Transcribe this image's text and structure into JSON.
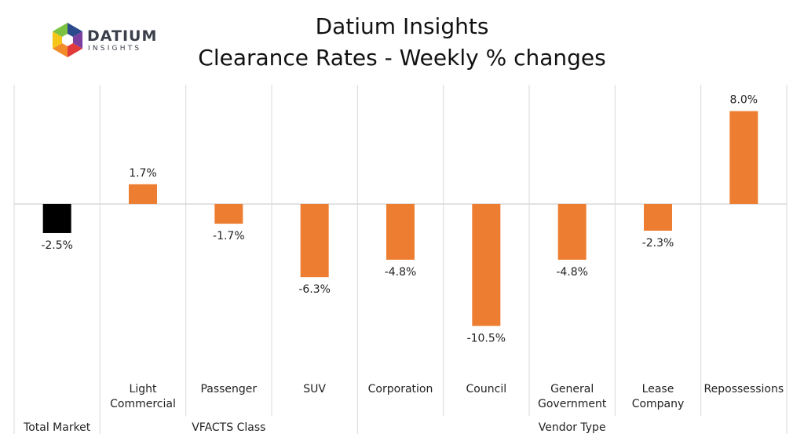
{
  "logo": {
    "name": "DATIUM",
    "tagline": "INSIGHTS",
    "icon": "datium-hexagon-logo-icon",
    "colors": [
      "#2b4a8c",
      "#7b3fa0",
      "#e23a3a",
      "#f28c28",
      "#f5c518",
      "#7cc242",
      "#1fb5c8"
    ]
  },
  "header": {
    "title": "Datium Insights",
    "subtitle": "Clearance Rates - Weekly % changes"
  },
  "colors": {
    "negative_total": "#000000",
    "bar": "#ed7d31",
    "grid": "#d9d9d9",
    "zero_line": "#d9d9d9"
  },
  "chart_data": {
    "type": "bar",
    "title": "Clearance Rates - Weekly % changes",
    "xlabel": "",
    "ylabel": "",
    "unit": "%",
    "categories": [
      [
        "Total Market"
      ],
      [
        "Light",
        "Commercial"
      ],
      [
        "Passenger"
      ],
      [
        "SUV"
      ],
      [
        "Corporation"
      ],
      [
        "Council"
      ],
      [
        "General",
        "Government"
      ],
      [
        "Lease",
        "Company"
      ],
      [
        "Repossessions"
      ]
    ],
    "values": [
      -2.5,
      1.7,
      -1.7,
      -6.3,
      -4.8,
      -10.5,
      -4.8,
      -2.3,
      8.0
    ],
    "value_labels": [
      "-2.5%",
      "1.7%",
      "-1.7%",
      "-6.3%",
      "-4.8%",
      "-10.5%",
      "-4.8%",
      "-2.3%",
      "8.0%"
    ],
    "bar_colors": [
      "#000000",
      "#ed7d31",
      "#ed7d31",
      "#ed7d31",
      "#ed7d31",
      "#ed7d31",
      "#ed7d31",
      "#ed7d31",
      "#ed7d31"
    ],
    "groups": [
      {
        "label": "Total Market",
        "categories": [
          "Total Market"
        ]
      },
      {
        "label": "VFACTS Class",
        "categories": [
          "Light Commercial",
          "Passenger",
          "SUV"
        ]
      },
      {
        "label": "Vendor Type",
        "categories": [
          "Corporation",
          "Council",
          "General Government",
          "Lease Company",
          "Repossessions"
        ]
      }
    ],
    "ylim": [
      -14.6,
      10.0
    ],
    "grid": true,
    "legend": "none"
  }
}
